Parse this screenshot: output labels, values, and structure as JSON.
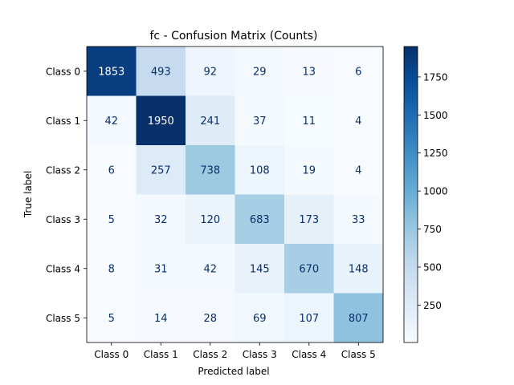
{
  "chart_data": {
    "type": "heatmap",
    "title": "fc - Confusion Matrix (Counts)",
    "xlabel": "Predicted label",
    "ylabel": "True label",
    "x_categories": [
      "Class 0",
      "Class 1",
      "Class 2",
      "Class 3",
      "Class 4",
      "Class 5"
    ],
    "y_categories": [
      "Class 0",
      "Class 1",
      "Class 2",
      "Class 3",
      "Class 4",
      "Class 5"
    ],
    "values": [
      [
        1853,
        493,
        92,
        29,
        13,
        6
      ],
      [
        42,
        1950,
        241,
        37,
        11,
        4
      ],
      [
        6,
        257,
        738,
        108,
        19,
        4
      ],
      [
        5,
        32,
        120,
        683,
        173,
        33
      ],
      [
        8,
        31,
        42,
        145,
        670,
        148
      ],
      [
        5,
        14,
        28,
        69,
        107,
        807
      ]
    ],
    "colormap": "Blues",
    "color_range": [
      4,
      1950
    ],
    "colorbar_ticks": [
      250,
      500,
      750,
      1000,
      1250,
      1500,
      1750
    ],
    "grid": false
  }
}
